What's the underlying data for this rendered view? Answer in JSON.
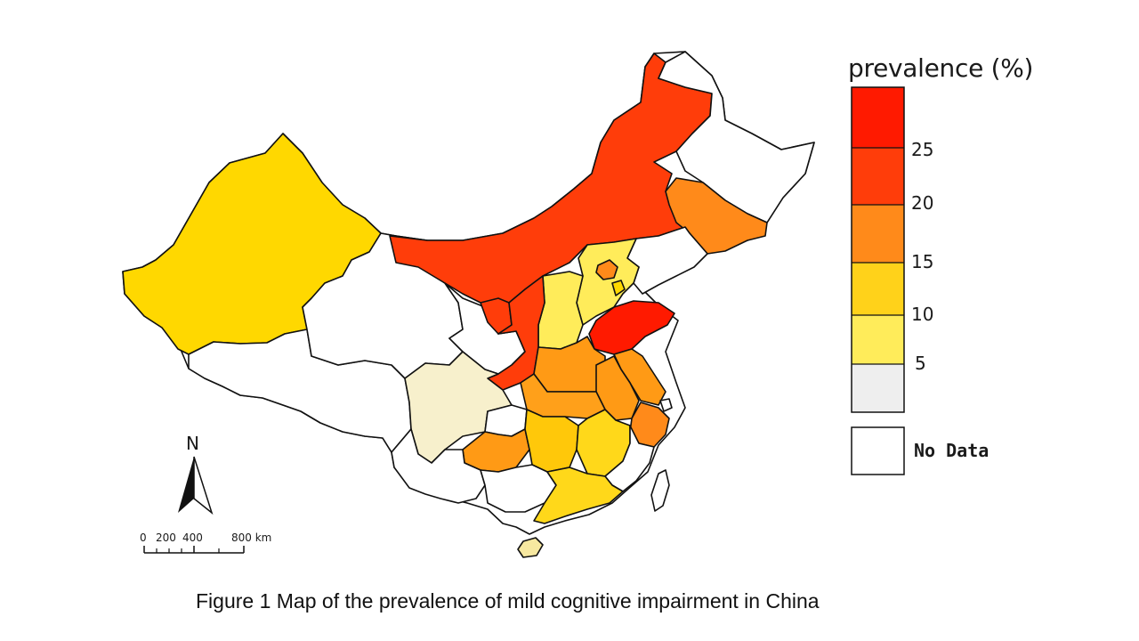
{
  "legend": {
    "title": "prevalence (%)",
    "ticks": [
      "25",
      "20",
      "15",
      "10",
      "5"
    ],
    "no_data_label": "No Data",
    "colors": {
      "gt25": "#ff1a00",
      "20_25": "#ff3d0a",
      "15_20": "#ff8a1a",
      "10_15": "#ffd21a",
      "5_10": "#ffec5a",
      "0_5": "#eeeeee",
      "no_data": "#ffffff"
    }
  },
  "north_arrow": {
    "label": "N"
  },
  "scale_bar": {
    "labels": [
      "0",
      "200",
      "400",
      "800 km"
    ]
  },
  "caption": "Figure 1 Map of the prevalence of mild cognitive impairment in China"
}
